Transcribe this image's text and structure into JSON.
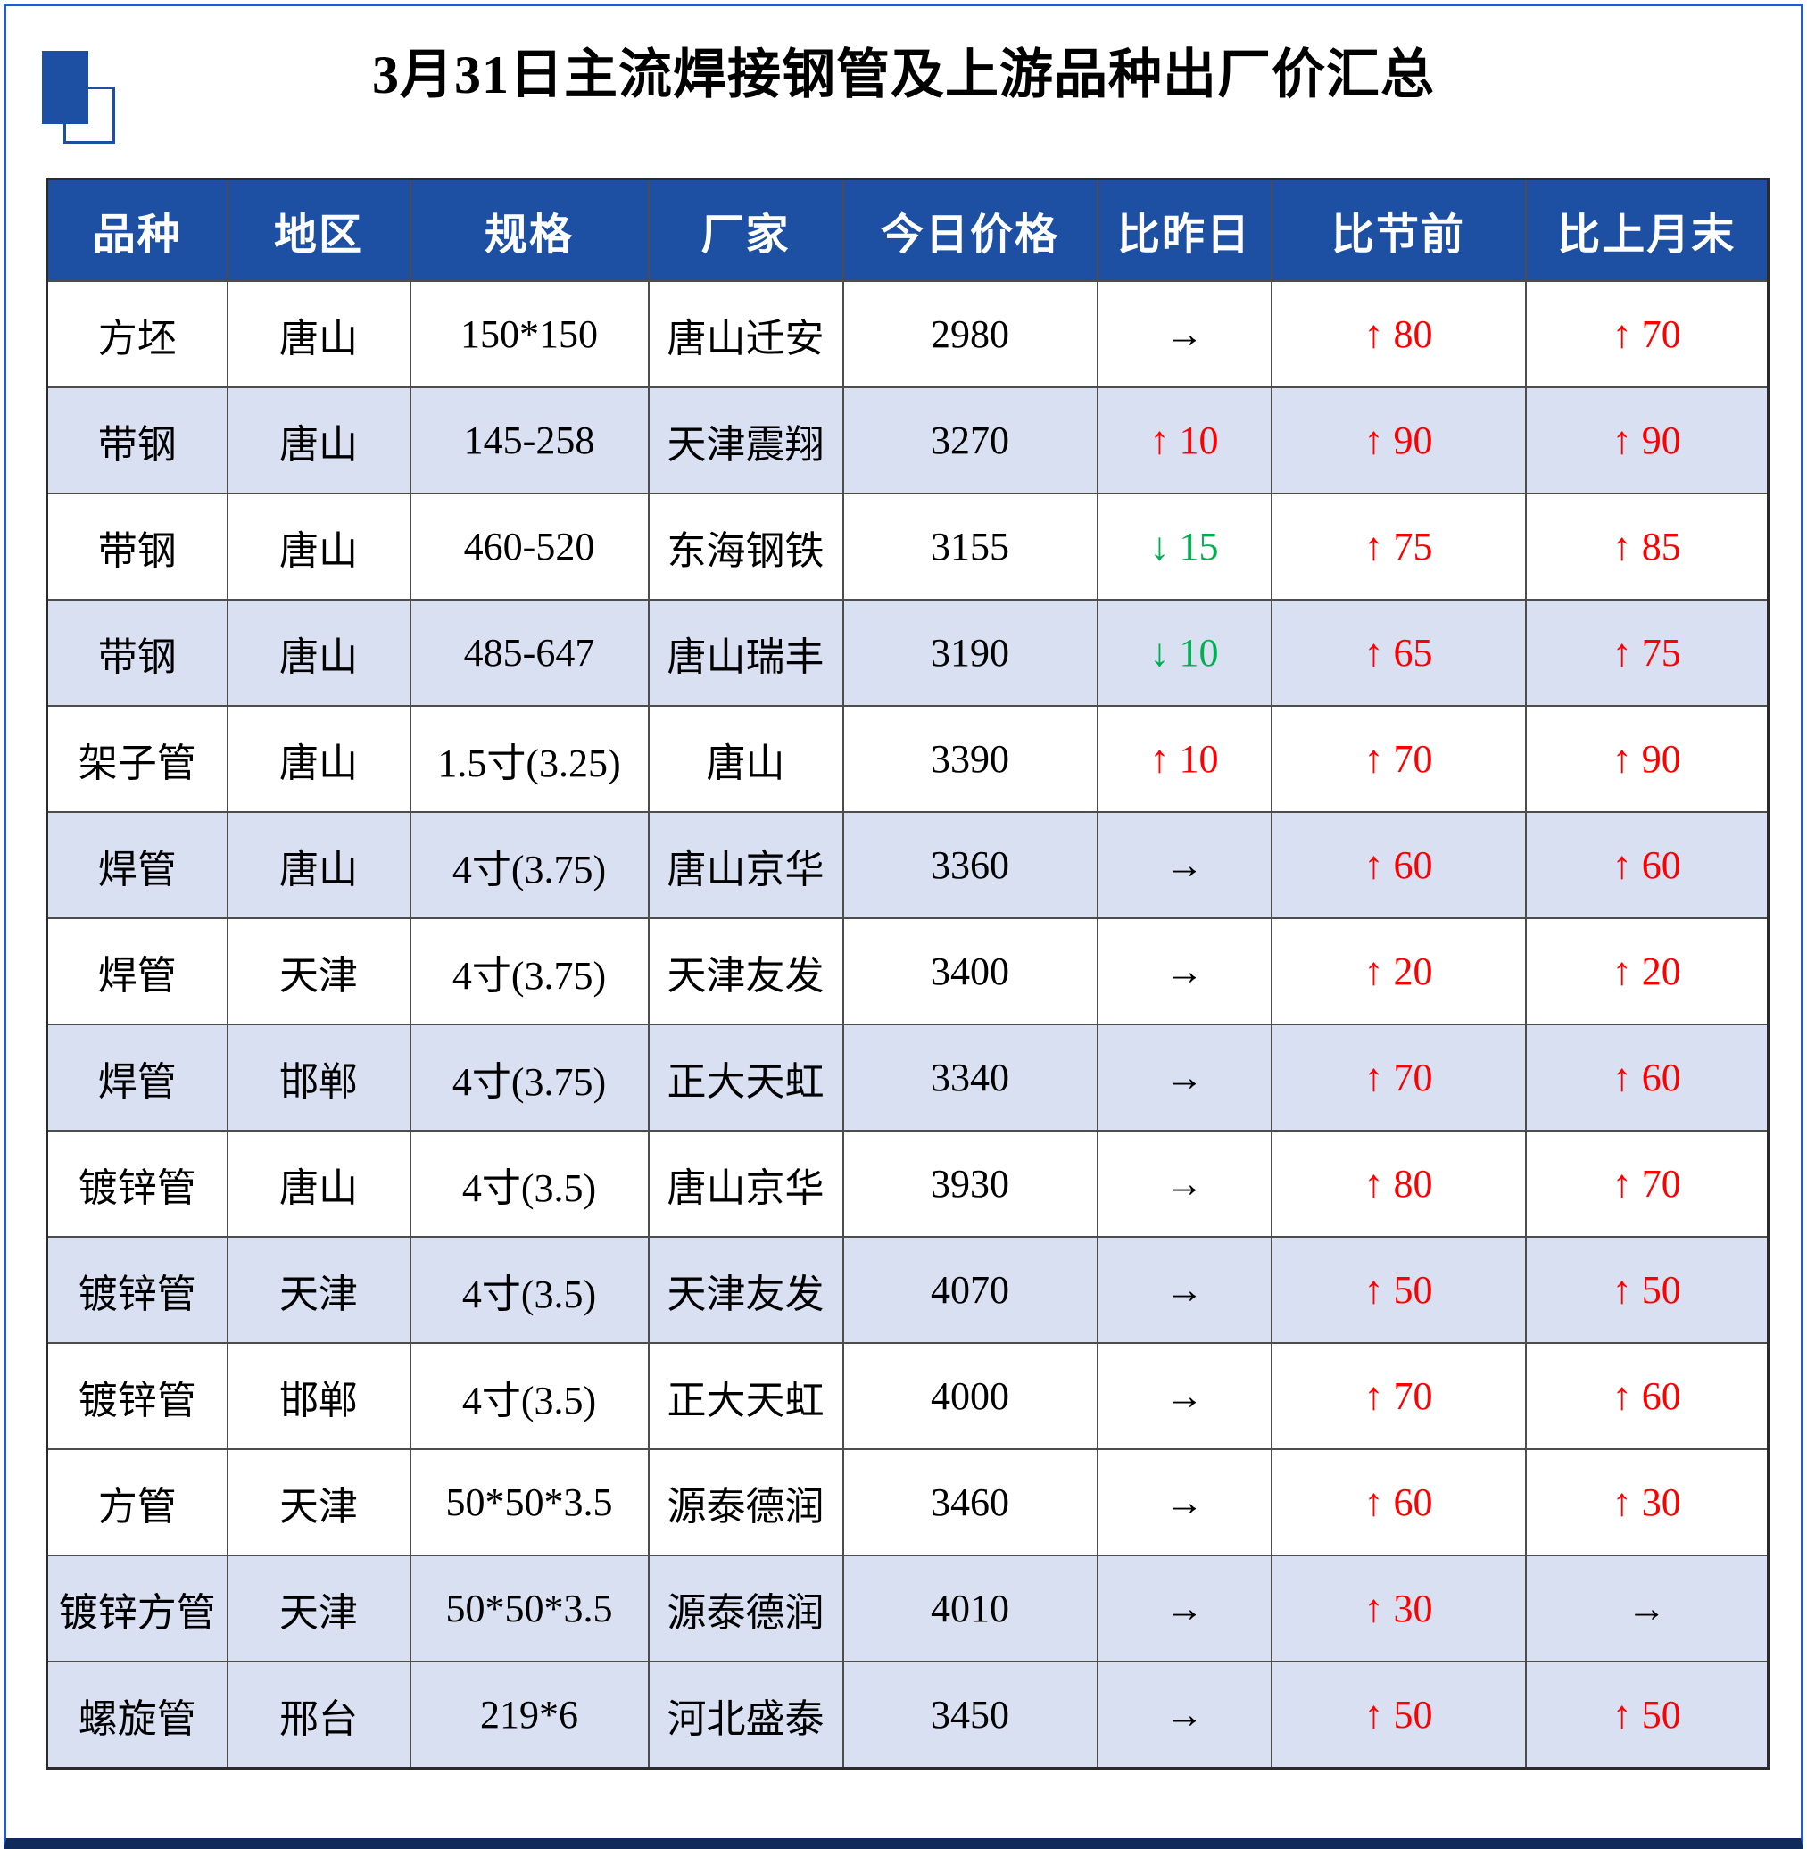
{
  "page": {
    "title": "3月31日主流焊接钢管及上游品种出厂价汇总"
  },
  "icon": {
    "name": "blue-squares-decoration"
  },
  "table": {
    "columns": [
      "品种",
      "地区",
      "规格",
      "厂家",
      "今日价格",
      "比昨日",
      "比节前",
      "比上月末"
    ],
    "arrows": {
      "up": "↑",
      "down": "↓",
      "flat": "→"
    },
    "change_colors": {
      "up": "#FF0000",
      "down": "#00B050",
      "flat": "#000000"
    },
    "header_bg": "#1D4FA3",
    "shaded_row_bg": "#D9E0F2",
    "frame_blue": "#2A5CB8",
    "rows": [
      {
        "cells": [
          "方坯",
          "唐山",
          "150*150",
          "唐山迁安",
          "2980"
        ],
        "changes": [
          {
            "dir": "flat",
            "value": ""
          },
          {
            "dir": "up",
            "value": "80"
          },
          {
            "dir": "up",
            "value": "70"
          }
        ],
        "shaded": false
      },
      {
        "cells": [
          "带钢",
          "唐山",
          "145-258",
          "天津震翔",
          "3270"
        ],
        "changes": [
          {
            "dir": "up",
            "value": "10"
          },
          {
            "dir": "up",
            "value": "90"
          },
          {
            "dir": "up",
            "value": "90"
          }
        ],
        "shaded": true
      },
      {
        "cells": [
          "带钢",
          "唐山",
          "460-520",
          "东海钢铁",
          "3155"
        ],
        "changes": [
          {
            "dir": "down",
            "value": "15"
          },
          {
            "dir": "up",
            "value": "75"
          },
          {
            "dir": "up",
            "value": "85"
          }
        ],
        "shaded": false
      },
      {
        "cells": [
          "带钢",
          "唐山",
          "485-647",
          "唐山瑞丰",
          "3190"
        ],
        "changes": [
          {
            "dir": "down",
            "value": "10"
          },
          {
            "dir": "up",
            "value": "65"
          },
          {
            "dir": "up",
            "value": "75"
          }
        ],
        "shaded": true
      },
      {
        "cells": [
          "架子管",
          "唐山",
          "1.5寸(3.25)",
          "唐山",
          "3390"
        ],
        "changes": [
          {
            "dir": "up",
            "value": "10"
          },
          {
            "dir": "up",
            "value": "70"
          },
          {
            "dir": "up",
            "value": "90"
          }
        ],
        "shaded": false
      },
      {
        "cells": [
          "焊管",
          "唐山",
          "4寸(3.75)",
          "唐山京华",
          "3360"
        ],
        "changes": [
          {
            "dir": "flat",
            "value": ""
          },
          {
            "dir": "up",
            "value": "60"
          },
          {
            "dir": "up",
            "value": "60"
          }
        ],
        "shaded": true
      },
      {
        "cells": [
          "焊管",
          "天津",
          "4寸(3.75)",
          "天津友发",
          "3400"
        ],
        "changes": [
          {
            "dir": "flat",
            "value": ""
          },
          {
            "dir": "up",
            "value": "20"
          },
          {
            "dir": "up",
            "value": "20"
          }
        ],
        "shaded": false
      },
      {
        "cells": [
          "焊管",
          "邯郸",
          "4寸(3.75)",
          "正大天虹",
          "3340"
        ],
        "changes": [
          {
            "dir": "flat",
            "value": ""
          },
          {
            "dir": "up",
            "value": "70"
          },
          {
            "dir": "up",
            "value": "60"
          }
        ],
        "shaded": true
      },
      {
        "cells": [
          "镀锌管",
          "唐山",
          "4寸(3.5)",
          "唐山京华",
          "3930"
        ],
        "changes": [
          {
            "dir": "flat",
            "value": ""
          },
          {
            "dir": "up",
            "value": "80"
          },
          {
            "dir": "up",
            "value": "70"
          }
        ],
        "shaded": false
      },
      {
        "cells": [
          "镀锌管",
          "天津",
          "4寸(3.5)",
          "天津友发",
          "4070"
        ],
        "changes": [
          {
            "dir": "flat",
            "value": ""
          },
          {
            "dir": "up",
            "value": "50"
          },
          {
            "dir": "up",
            "value": "50"
          }
        ],
        "shaded": true
      },
      {
        "cells": [
          "镀锌管",
          "邯郸",
          "4寸(3.5)",
          "正大天虹",
          "4000"
        ],
        "changes": [
          {
            "dir": "flat",
            "value": ""
          },
          {
            "dir": "up",
            "value": "70"
          },
          {
            "dir": "up",
            "value": "60"
          }
        ],
        "shaded": false
      },
      {
        "cells": [
          "方管",
          "天津",
          "50*50*3.5",
          "源泰德润",
          "3460"
        ],
        "changes": [
          {
            "dir": "flat",
            "value": ""
          },
          {
            "dir": "up",
            "value": "60"
          },
          {
            "dir": "up",
            "value": "30"
          }
        ],
        "shaded": false
      },
      {
        "cells": [
          "镀锌方管",
          "天津",
          "50*50*3.5",
          "源泰德润",
          "4010"
        ],
        "changes": [
          {
            "dir": "flat",
            "value": ""
          },
          {
            "dir": "up",
            "value": "30"
          },
          {
            "dir": "flat",
            "value": ""
          }
        ],
        "shaded": true
      },
      {
        "cells": [
          "螺旋管",
          "邢台",
          "219*6",
          "河北盛泰",
          "3450"
        ],
        "changes": [
          {
            "dir": "flat",
            "value": ""
          },
          {
            "dir": "up",
            "value": "50"
          },
          {
            "dir": "up",
            "value": "50"
          }
        ],
        "shaded": true
      }
    ]
  }
}
